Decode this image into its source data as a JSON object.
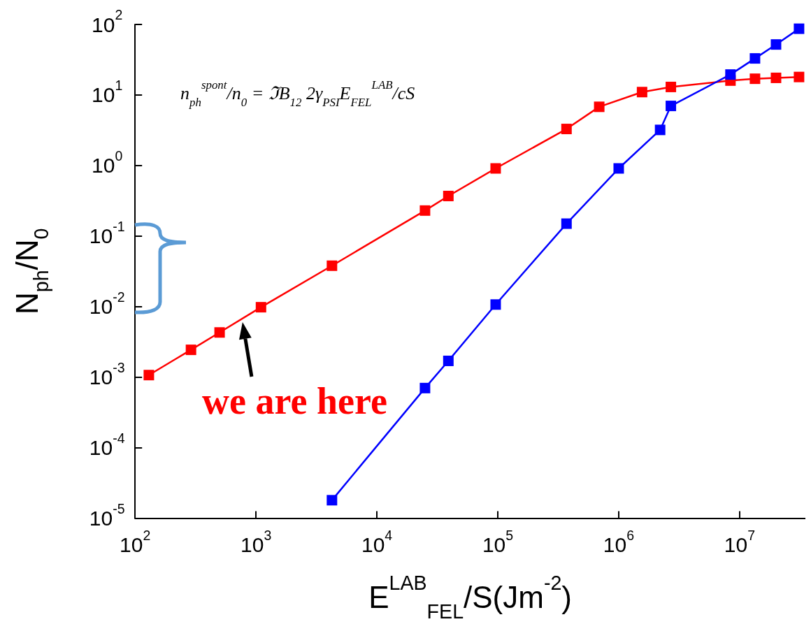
{
  "chart_data": {
    "type": "line",
    "xlabel": "E$^{LAB}$$_{FEL}$/S(Jm$^{-2}$)",
    "ylabel": "N$_{ph}$/N$_{0}$",
    "annotations": [
      "n$_{ph}$$^{spont}$/n$_{0}$ = ℑB$_{12}$ 2γ$_{PSI}$E$_{FEL}$$^{LAB}$/cS",
      {
        "text": "we are here",
        "x": 770,
        "y": 0.006
      }
    ],
    "log": "xy",
    "marker": "square",
    "line_style": "solid",
    "grid": false,
    "xlim": [
      100,
      35000000
    ],
    "ylim": [
      1e-05,
      100
    ],
    "xticks": [
      {
        "value": 100,
        "label": "10$^{2}$"
      },
      {
        "value": 1000,
        "label": "10$^{3}$"
      },
      {
        "value": 10000,
        "label": "10$^{4}$"
      },
      {
        "value": 100000,
        "label": "10$^{5}$"
      },
      {
        "value": 1000000,
        "label": "10$^{6}$"
      },
      {
        "value": 10000000,
        "label": "10$^{7}$"
      }
    ],
    "yticks": [
      {
        "value": 1e-05,
        "label": "10$^{-5}$"
      },
      {
        "value": 0.0001,
        "label": "10$^{-4}$"
      },
      {
        "value": 0.001,
        "label": "10$^{-3}$"
      },
      {
        "value": 0.01,
        "label": "10$^{-2}$"
      },
      {
        "value": 0.1,
        "label": "10$^{-1}$"
      },
      {
        "value": 1,
        "label": "10$^{0}$"
      },
      {
        "value": 10,
        "label": "10$^{1}$"
      },
      {
        "value": 100,
        "label": "10$^{2}$"
      }
    ],
    "series": [
      {
        "color": "#ff0000",
        "x": [
          130,
          290,
          500,
          1100,
          4250,
          25000,
          39000,
          96000,
          370000,
          690000,
          1560000,
          2700000,
          8400000,
          13400000,
          20000000,
          31000000
        ],
        "values": [
          0.00107,
          0.00244,
          0.0043,
          0.0098,
          0.038,
          0.23,
          0.37,
          0.91,
          3.3,
          6.8,
          11,
          13,
          16,
          17,
          17.5,
          18
        ]
      },
      {
        "color": "#0000ff",
        "x": [
          4250,
          25000,
          39000,
          96000,
          370000,
          1000000,
          2200000,
          2700000,
          8400000,
          13400000,
          20000000,
          31000000
        ],
        "values": [
          1.8e-05,
          0.0007,
          0.0017,
          0.0107,
          0.15,
          0.91,
          3.2,
          7,
          19.5,
          33,
          52,
          87
        ]
      }
    ]
  }
}
